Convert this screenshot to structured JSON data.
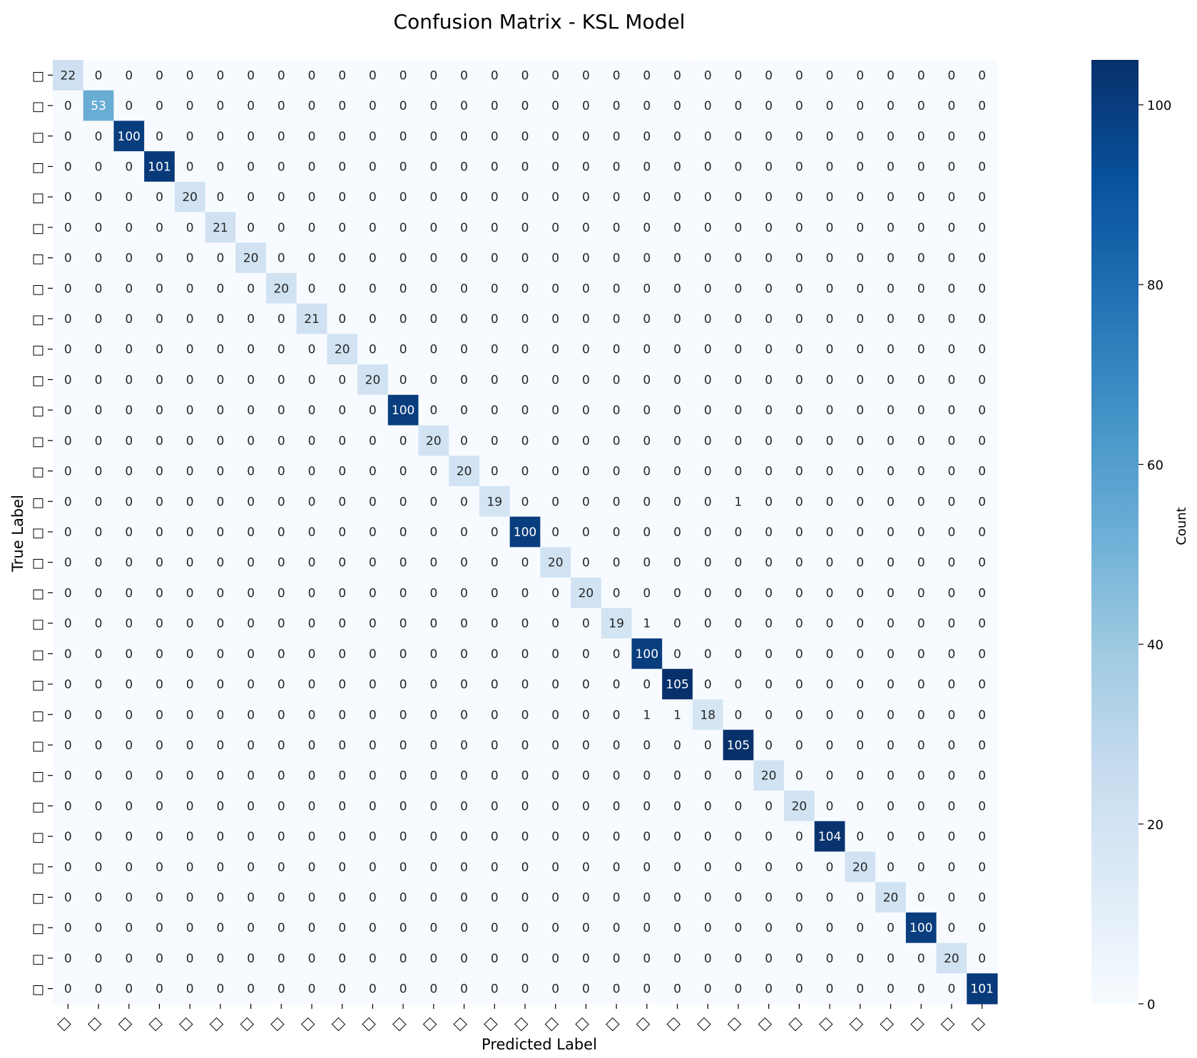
{
  "chart_data": {
    "type": "heatmap",
    "title": "Confusion Matrix - KSL Model",
    "xlabel": "Predicted Label",
    "ylabel": "True Label",
    "colorbar_label": "Count",
    "colorbar_ticks": [
      0,
      20,
      40,
      60,
      80,
      100
    ],
    "vmin": 0,
    "vmax": 105,
    "colormap": "Blues",
    "tick_glyph": "□",
    "grid": false,
    "n": 31,
    "nonzero": [
      {
        "row": 0,
        "col": 0,
        "value": 22
      },
      {
        "row": 1,
        "col": 1,
        "value": 53
      },
      {
        "row": 2,
        "col": 2,
        "value": 100
      },
      {
        "row": 3,
        "col": 3,
        "value": 101
      },
      {
        "row": 4,
        "col": 4,
        "value": 20
      },
      {
        "row": 5,
        "col": 5,
        "value": 21
      },
      {
        "row": 6,
        "col": 6,
        "value": 20
      },
      {
        "row": 7,
        "col": 7,
        "value": 20
      },
      {
        "row": 8,
        "col": 8,
        "value": 21
      },
      {
        "row": 9,
        "col": 9,
        "value": 20
      },
      {
        "row": 10,
        "col": 10,
        "value": 20
      },
      {
        "row": 11,
        "col": 11,
        "value": 100
      },
      {
        "row": 12,
        "col": 12,
        "value": 20
      },
      {
        "row": 13,
        "col": 13,
        "value": 20
      },
      {
        "row": 14,
        "col": 14,
        "value": 19
      },
      {
        "row": 14,
        "col": 22,
        "value": 1
      },
      {
        "row": 15,
        "col": 15,
        "value": 100
      },
      {
        "row": 16,
        "col": 16,
        "value": 20
      },
      {
        "row": 17,
        "col": 17,
        "value": 20
      },
      {
        "row": 18,
        "col": 18,
        "value": 19
      },
      {
        "row": 18,
        "col": 19,
        "value": 1
      },
      {
        "row": 19,
        "col": 19,
        "value": 100
      },
      {
        "row": 20,
        "col": 20,
        "value": 105
      },
      {
        "row": 21,
        "col": 19,
        "value": 1
      },
      {
        "row": 21,
        "col": 20,
        "value": 1
      },
      {
        "row": 21,
        "col": 21,
        "value": 18
      },
      {
        "row": 22,
        "col": 22,
        "value": 105
      },
      {
        "row": 23,
        "col": 23,
        "value": 20
      },
      {
        "row": 24,
        "col": 24,
        "value": 20
      },
      {
        "row": 25,
        "col": 25,
        "value": 104
      },
      {
        "row": 26,
        "col": 26,
        "value": 20
      },
      {
        "row": 27,
        "col": 27,
        "value": 20
      },
      {
        "row": 28,
        "col": 28,
        "value": 100
      },
      {
        "row": 29,
        "col": 29,
        "value": 20
      },
      {
        "row": 30,
        "col": 30,
        "value": 101
      }
    ]
  }
}
